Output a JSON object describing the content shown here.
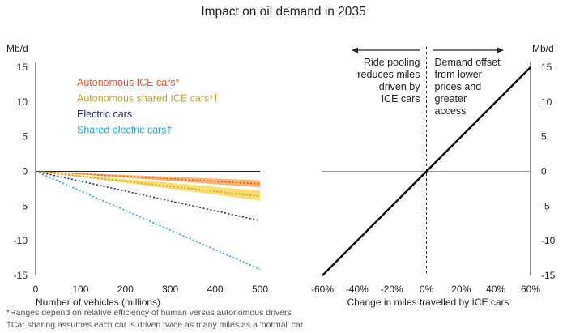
{
  "title": "Impact on oil demand in 2035",
  "footnotes": [
    "*Ranges depend on relative efficiency of human versus autonomous drivers",
    "†Car sharing assumes each car is driven twice as many miles as a 'normal' car"
  ],
  "chart_data": [
    {
      "type": "line",
      "xlabel": "Number of vehicles (millions)",
      "ylabel": "Mb/d",
      "xlim": [
        0,
        500
      ],
      "ylim": [
        -15,
        15
      ],
      "xticks": [
        "0",
        "100",
        "200",
        "300",
        "400",
        "500"
      ],
      "yticks": [
        "15",
        "10",
        "5",
        "0",
        "-5",
        "-10",
        "-15"
      ],
      "legend_position": "top-left",
      "series": [
        {
          "name": "Autonomous ICE cars*",
          "color": "#f4511e",
          "x": [
            0,
            500
          ],
          "y": [
            0,
            -1.8
          ],
          "band": [
            [
              0,
              0
            ],
            [
              -1.3,
              -2.3
            ]
          ],
          "band_color": "#f7a24b"
        },
        {
          "name": "Autonomous shared ICE cars*†",
          "color": "#c9a227",
          "x": [
            0,
            500
          ],
          "y": [
            0,
            -3.6
          ],
          "band": [
            [
              0,
              0
            ],
            [
              -2.8,
              -4.2
            ]
          ],
          "band_color": "#f9d54a"
        },
        {
          "name": "Electric cars",
          "color": "#1f2a8a",
          "x": [
            0,
            500
          ],
          "y": [
            0,
            -7.1
          ]
        },
        {
          "name": "Shared electric cars†",
          "color": "#1aa6d6",
          "x": [
            0,
            500
          ],
          "y": [
            0,
            -14.1
          ]
        }
      ]
    },
    {
      "type": "line",
      "xlabel": "Change in miles travelled by ICE cars",
      "ylabel": "Mb/d",
      "xlim": [
        -60,
        60
      ],
      "ylim": [
        -15,
        15
      ],
      "xticks": [
        "-60%",
        "-40%",
        "-20%",
        "0%",
        "20%",
        "40%",
        "60%"
      ],
      "yticks": [
        "15",
        "10",
        "5",
        "0",
        "-5",
        "-10",
        "-15"
      ],
      "series": [
        {
          "color": "#000000",
          "x": [
            -60,
            60
          ],
          "y": [
            -15,
            15
          ]
        }
      ],
      "annotations": {
        "left": [
          "Ride pooling",
          "reduces miles",
          "driven by",
          "ICE cars"
        ],
        "right": [
          "Demand offset",
          "from lower",
          "prices and",
          "greater",
          "access"
        ]
      }
    }
  ]
}
